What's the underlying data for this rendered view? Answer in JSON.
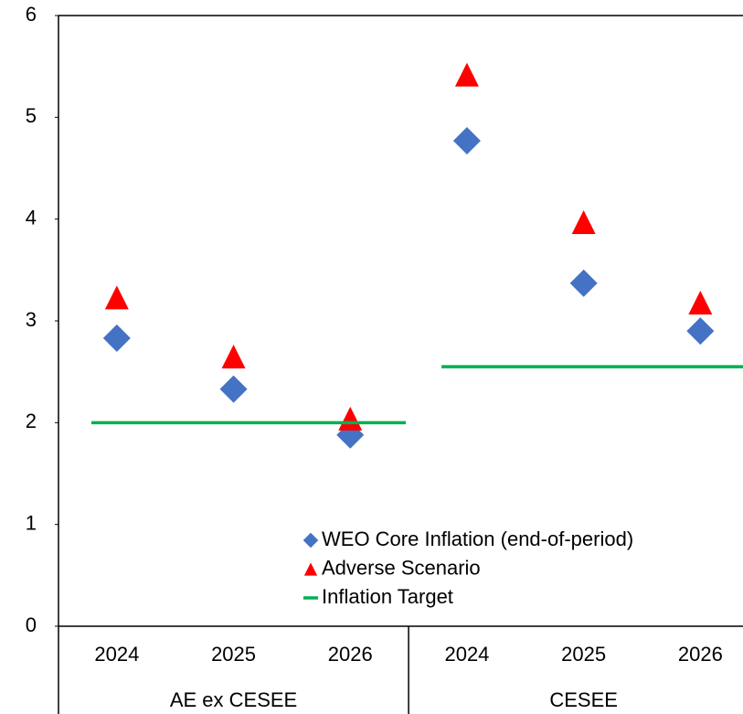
{
  "chart_data": {
    "type": "scatter",
    "categories": [
      "2024",
      "2025",
      "2026",
      "2024",
      "2025",
      "2026"
    ],
    "groups": [
      {
        "name": "AE ex CESEE",
        "size": 3
      },
      {
        "name": "CESEE",
        "size": 3
      }
    ],
    "series": [
      {
        "name": "WEO Core Inflation (end-of-period)",
        "color": "#4472c4",
        "marker": "diamond",
        "values": [
          2.83,
          2.33,
          1.88,
          4.77,
          3.37,
          2.9
        ]
      },
      {
        "name": "Adverse Scenario",
        "color": "#ff0000",
        "marker": "triangle",
        "values": [
          3.23,
          2.65,
          2.04,
          5.42,
          3.97,
          3.18
        ]
      },
      {
        "name": "Inflation Target",
        "color": "#00b050",
        "marker": "line",
        "values": [
          2,
          2,
          2,
          2.55,
          2.55,
          2.55
        ]
      }
    ],
    "ylim": [
      0,
      6
    ],
    "yticks": [
      0,
      1,
      2,
      3,
      4,
      5,
      6
    ],
    "grid": false,
    "legend": "lower right"
  }
}
